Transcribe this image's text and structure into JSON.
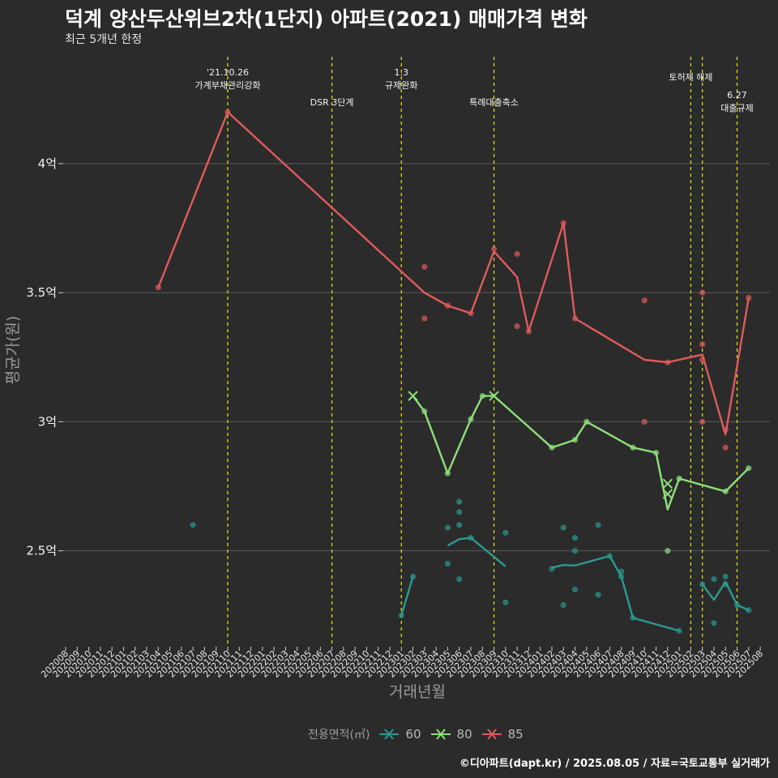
{
  "title": "덕계 양산두산위브2차(1단지) 아파트(2021) 매매가격 변화",
  "subtitle": "최근 5개년 한정",
  "credit": "©디아파트(dapt.kr) / 2025.08.05 / 자료=국토교통부 실거래가",
  "colors": {
    "background": "#2b2b2b",
    "grid": "#5a5a5a",
    "vline": "#e6e619",
    "s60": "#2a9a90",
    "s80": "#8ee07a",
    "s85": "#e05a5a"
  },
  "legend": {
    "title": "전용면적(㎡)",
    "items": [
      "60",
      "80",
      "85"
    ]
  },
  "chart_data": {
    "type": "line",
    "xlabel": "거래년월",
    "ylabel": "평균가(원)",
    "y_ticks": [
      {
        "value": 2.5,
        "label": "2.5억"
      },
      {
        "value": 3.0,
        "label": "3억"
      },
      {
        "value": 3.5,
        "label": "3.5억"
      },
      {
        "value": 4.0,
        "label": "4억"
      }
    ],
    "ylim": [
      2.1,
      4.4
    ],
    "x_categories": [
      "202008",
      "202009",
      "202010",
      "202011",
      "202012",
      "202101",
      "202102",
      "202103",
      "202104",
      "202105",
      "202106",
      "202107",
      "202108",
      "202109",
      "202110",
      "202111",
      "202112",
      "202201",
      "202202",
      "202203",
      "202204",
      "202205",
      "202206",
      "202207",
      "202208",
      "202209",
      "202210",
      "202211",
      "202212",
      "202301",
      "202302",
      "202303",
      "202304",
      "202305",
      "202306",
      "202307",
      "202308",
      "202309",
      "202310",
      "202311",
      "202312",
      "202401",
      "202402",
      "202403",
      "202404",
      "202405",
      "202406",
      "202407",
      "202408",
      "202409",
      "202410",
      "202411",
      "202412",
      "202501",
      "202502",
      "202503",
      "202504",
      "202505",
      "202506",
      "202507",
      "202508"
    ],
    "annotations": [
      {
        "x": "202110",
        "lines": [
          "'21.10.26",
          "가계부채관리강화"
        ],
        "row": 0
      },
      {
        "x": "202207",
        "lines": [
          "DSR 3단계"
        ],
        "row": 2
      },
      {
        "x": "202301",
        "lines": [
          "1.3",
          "규제완화"
        ],
        "row": 0
      },
      {
        "x": "202309",
        "lines": [
          "특례대출축소"
        ],
        "row": 2
      },
      {
        "x": "202502",
        "lines": [
          "토허제 해제"
        ],
        "row": 1
      },
      {
        "x": "202503",
        "lines": [],
        "row": 1
      },
      {
        "x": "202506",
        "lines": [
          "6.27",
          "대출규제"
        ],
        "row": 3
      }
    ],
    "series": [
      {
        "name": "60",
        "color": "#2a9a90",
        "segments": [
          [
            [
              "202301",
              2.25
            ],
            [
              "202302",
              2.4
            ]
          ],
          [
            [
              "202305",
              2.52
            ],
            [
              "202306",
              2.545
            ],
            [
              "202307",
              2.55
            ],
            [
              "202310",
              2.44
            ]
          ],
          [
            [
              "202402",
              2.435
            ],
            [
              "202403",
              2.445
            ],
            [
              "202404",
              2.443
            ],
            [
              "202407",
              2.48
            ],
            [
              "202408",
              2.4
            ],
            [
              "202409",
              2.24
            ],
            [
              "202501",
              2.19
            ]
          ],
          [
            [
              "202503",
              2.37
            ],
            [
              "202504",
              2.31
            ],
            [
              "202505",
              2.38
            ],
            [
              "202506",
              2.29
            ],
            [
              "202507",
              2.27
            ]
          ]
        ],
        "points": [
          [
            "202107",
            2.6
          ],
          [
            "202301",
            2.25
          ],
          [
            "202302",
            2.4
          ],
          [
            "202305",
            2.59
          ],
          [
            "202305",
            2.45
          ],
          [
            "202306",
            2.69
          ],
          [
            "202306",
            2.65
          ],
          [
            "202306",
            2.6
          ],
          [
            "202306",
            2.39
          ],
          [
            "202307",
            2.55
          ],
          [
            "202310",
            2.57
          ],
          [
            "202310",
            2.3
          ],
          [
            "202402",
            2.43
          ],
          [
            "202403",
            2.59
          ],
          [
            "202403",
            2.29
          ],
          [
            "202404",
            2.55
          ],
          [
            "202404",
            2.5
          ],
          [
            "202404",
            2.35
          ],
          [
            "202406",
            2.6
          ],
          [
            "202406",
            2.33
          ],
          [
            "202407",
            2.48
          ],
          [
            "202408",
            2.42
          ],
          [
            "202408",
            2.4
          ],
          [
            "202409",
            2.24
          ],
          [
            "202501",
            2.19
          ],
          [
            "202503",
            2.37
          ],
          [
            "202504",
            2.39
          ],
          [
            "202504",
            2.22
          ],
          [
            "202505",
            2.4
          ],
          [
            "202505",
            2.37
          ],
          [
            "202506",
            2.29
          ],
          [
            "202507",
            2.27
          ]
        ],
        "cross_points": []
      },
      {
        "name": "80",
        "color": "#8ee07a",
        "segments": [
          [
            [
              "202302",
              3.1
            ],
            [
              "202303",
              3.04
            ],
            [
              "202305",
              2.8
            ],
            [
              "202307",
              3.01
            ],
            [
              "202308",
              3.1
            ],
            [
              "202309",
              3.1
            ],
            [
              "202402",
              2.9
            ],
            [
              "202404",
              2.93
            ],
            [
              "202405",
              3.0
            ],
            [
              "202409",
              2.9
            ],
            [
              "202411",
              2.88
            ],
            [
              "202412",
              2.66
            ],
            [
              "202501",
              2.78
            ],
            [
              "202505",
              2.73
            ],
            [
              "202507",
              2.82
            ]
          ]
        ],
        "points": [
          [
            "202303",
            3.04
          ],
          [
            "202305",
            2.8
          ],
          [
            "202307",
            3.01
          ],
          [
            "202308",
            3.1
          ],
          [
            "202402",
            2.9
          ],
          [
            "202404",
            2.93
          ],
          [
            "202405",
            3.0
          ],
          [
            "202409",
            2.9
          ],
          [
            "202411",
            2.88
          ],
          [
            "202412",
            2.5
          ],
          [
            "202501",
            2.78
          ],
          [
            "202505",
            2.73
          ],
          [
            "202507",
            2.82
          ]
        ],
        "cross_points": [
          [
            "202302",
            3.1
          ],
          [
            "202309",
            3.1
          ],
          [
            "202412",
            2.76
          ],
          [
            "202412",
            2.72
          ]
        ]
      },
      {
        "name": "85",
        "color": "#e05a5a",
        "segments": [
          [
            [
              "202104",
              3.52
            ],
            [
              "202110",
              4.2
            ],
            [
              "202303",
              3.5
            ],
            [
              "202305",
              3.45
            ],
            [
              "202307",
              3.42
            ],
            [
              "202309",
              3.66
            ],
            [
              "202311",
              3.56
            ],
            [
              "202312",
              3.35
            ],
            [
              "202403",
              3.77
            ],
            [
              "202404",
              3.4
            ],
            [
              "202410",
              3.24
            ],
            [
              "202412",
              3.23
            ],
            [
              "202503",
              3.26
            ],
            [
              "202505",
              2.95
            ],
            [
              "202507",
              3.48
            ]
          ]
        ],
        "points": [
          [
            "202104",
            3.52
          ],
          [
            "202110",
            4.2
          ],
          [
            "202303",
            3.6
          ],
          [
            "202303",
            3.4
          ],
          [
            "202305",
            3.45
          ],
          [
            "202307",
            3.42
          ],
          [
            "202309",
            3.67
          ],
          [
            "202311",
            3.65
          ],
          [
            "202311",
            3.37
          ],
          [
            "202312",
            3.35
          ],
          [
            "202403",
            3.77
          ],
          [
            "202404",
            3.4
          ],
          [
            "202410",
            3.47
          ],
          [
            "202410",
            3.0
          ],
          [
            "202412",
            3.23
          ],
          [
            "202503",
            3.5
          ],
          [
            "202503",
            3.3
          ],
          [
            "202503",
            3.24
          ],
          [
            "202503",
            3.0
          ],
          [
            "202505",
            2.9
          ],
          [
            "202505",
            2.97
          ],
          [
            "202507",
            3.48
          ]
        ],
        "cross_points": []
      }
    ]
  }
}
